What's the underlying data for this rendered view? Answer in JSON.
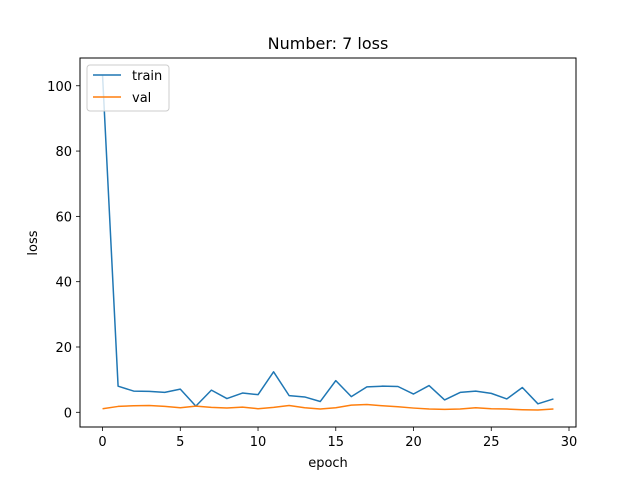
{
  "chart_data": {
    "type": "line",
    "title": "Number: 7 loss",
    "xlabel": "epoch",
    "ylabel": "loss",
    "xlim": [
      -1.45,
      30.45
    ],
    "ylim": [
      -4.5,
      108.5
    ],
    "xticks": [
      0,
      5,
      10,
      15,
      20,
      25,
      30
    ],
    "yticks": [
      0,
      20,
      40,
      60,
      80,
      100
    ],
    "grid": false,
    "legend_position": "upper-left",
    "x": [
      0,
      1,
      2,
      3,
      4,
      5,
      6,
      7,
      8,
      9,
      10,
      11,
      12,
      13,
      14,
      15,
      16,
      17,
      18,
      19,
      20,
      21,
      22,
      23,
      24,
      25,
      26,
      27,
      28,
      29
    ],
    "series": [
      {
        "name": "train",
        "color": "#1f77b4",
        "values": [
          103.2,
          8.0,
          6.5,
          6.4,
          6.1,
          7.1,
          1.9,
          6.8,
          4.2,
          5.9,
          5.4,
          12.4,
          5.1,
          4.7,
          3.3,
          9.7,
          4.8,
          7.8,
          8.0,
          7.9,
          5.6,
          8.2,
          3.8,
          6.1,
          6.5,
          5.8,
          4.1,
          7.6,
          2.6,
          4.1
        ]
      },
      {
        "name": "val",
        "color": "#ff7f0e",
        "values": [
          1.1,
          1.8,
          2.0,
          2.1,
          1.8,
          1.4,
          1.9,
          1.5,
          1.3,
          1.6,
          1.1,
          1.5,
          2.1,
          1.4,
          1.0,
          1.4,
          2.2,
          2.4,
          2.0,
          1.7,
          1.3,
          1.0,
          0.9,
          1.0,
          1.4,
          1.1,
          1.0,
          0.8,
          0.7,
          1.0
        ]
      }
    ]
  }
}
